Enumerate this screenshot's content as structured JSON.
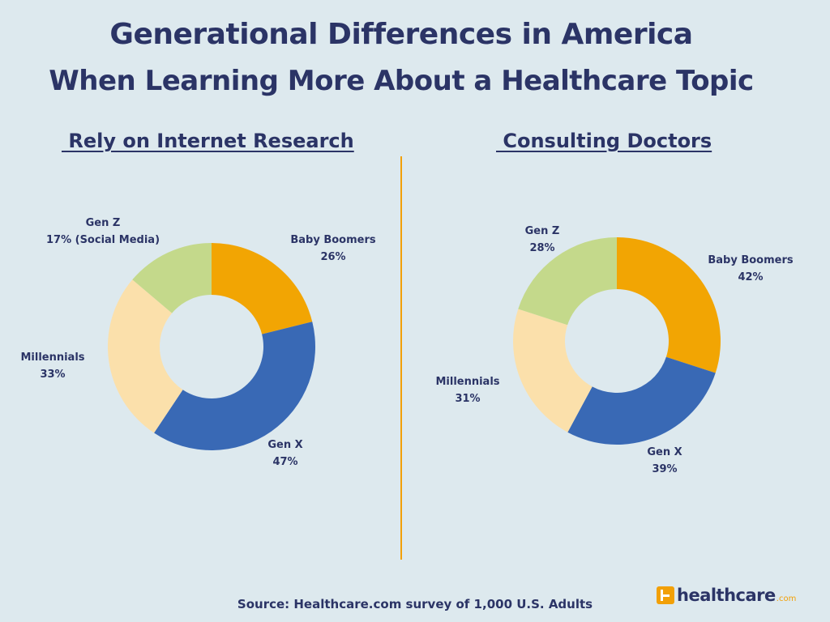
{
  "title_line1": "Generational Differences in America",
  "title_line2": "When Learning More About a Healthcare Topic",
  "source": "Source: Healthcare.com survey of 1,000 U.S. Adults",
  "logo": {
    "text": "healthcare",
    "suffix": ".com"
  },
  "colors": {
    "baby_boomers": "#f2a503",
    "gen_x": "#3969b5",
    "millennials": "#fbe0ab",
    "gen_z": "#c4d98b",
    "divider": "#f2a007",
    "text": "#2b3466",
    "background": "#dde9ee"
  },
  "chart_data": [
    {
      "type": "pie",
      "title": " Rely on Internet Research",
      "slices": [
        {
          "name": "Baby Boomers",
          "value": 26,
          "value_label": "26%"
        },
        {
          "name": "Gen X",
          "value": 47,
          "value_label": "47%"
        },
        {
          "name": "Millennials",
          "value": 33,
          "value_label": "33%"
        },
        {
          "name": "Gen Z",
          "value": 17,
          "value_label": "17% (Social Media)"
        }
      ]
    },
    {
      "type": "pie",
      "title": " Consulting Doctors",
      "slices": [
        {
          "name": "Baby Boomers",
          "value": 42,
          "value_label": "42%"
        },
        {
          "name": "Gen X",
          "value": 39,
          "value_label": "39%"
        },
        {
          "name": "Millennials",
          "value": 31,
          "value_label": "31%"
        },
        {
          "name": "Gen Z",
          "value": 28,
          "value_label": "28%"
        }
      ]
    }
  ]
}
